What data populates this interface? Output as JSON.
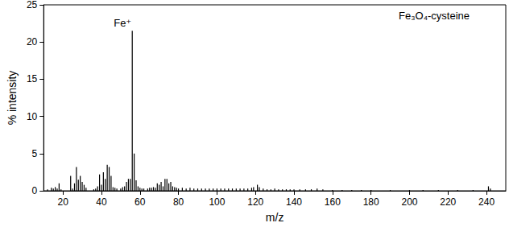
{
  "chart_data": {
    "type": "bar",
    "title": "Fe₃O₄-cysteine",
    "x_label": "m/z",
    "y_label": "% intensity",
    "color": "#000000",
    "xlim": [
      10,
      250
    ],
    "xticks": [
      20,
      40,
      60,
      80,
      100,
      120,
      140,
      160,
      180,
      200,
      220,
      240
    ],
    "ylim": [
      0,
      25
    ],
    "yticks": [
      0,
      5,
      10,
      15,
      20,
      25
    ],
    "grid": false,
    "annotations": [
      {
        "text": "Fe⁺",
        "x": 56
      }
    ],
    "x": [
      12,
      14,
      15,
      16,
      17,
      18,
      19,
      24,
      25,
      26,
      27,
      28,
      29,
      30,
      31,
      32,
      36,
      37,
      38,
      39,
      40,
      41,
      42,
      43,
      44,
      45,
      46,
      47,
      48,
      50,
      51,
      52,
      53,
      54,
      55,
      56,
      57,
      58,
      59,
      60,
      61,
      62,
      64,
      65,
      66,
      67,
      68,
      69,
      70,
      71,
      72,
      73,
      74,
      75,
      76,
      77,
      78,
      79,
      80,
      82,
      84,
      86,
      88,
      90,
      92,
      94,
      96,
      98,
      100,
      102,
      104,
      106,
      108,
      110,
      112,
      114,
      116,
      118,
      119,
      121,
      122,
      124,
      126,
      128,
      130,
      132,
      134,
      136,
      138,
      140,
      143,
      146,
      149,
      152,
      155,
      160,
      165,
      170,
      175,
      180,
      190,
      200,
      207,
      215,
      225,
      233,
      241,
      242
    ],
    "values": [
      0.2,
      0.4,
      0.3,
      0.5,
      0.3,
      1.0,
      0.2,
      2.0,
      0.3,
      1.0,
      3.2,
      1.5,
      2.0,
      1.2,
      0.8,
      0.4,
      0.2,
      0.3,
      0.6,
      2.2,
      0.8,
      2.5,
      1.6,
      3.5,
      3.2,
      2.0,
      0.5,
      0.4,
      0.3,
      0.3,
      0.5,
      0.6,
      1.2,
      1.6,
      1.6,
      21.5,
      5.0,
      1.4,
      0.6,
      0.4,
      0.3,
      0.3,
      0.3,
      0.4,
      0.4,
      0.5,
      0.4,
      1.0,
      0.8,
      1.2,
      0.6,
      1.6,
      1.6,
      1.0,
      1.2,
      0.6,
      0.5,
      0.4,
      0.3,
      0.4,
      0.3,
      0.4,
      0.3,
      0.3,
      0.3,
      0.3,
      0.3,
      0.3,
      0.3,
      0.3,
      0.3,
      0.3,
      0.3,
      0.3,
      0.3,
      0.3,
      0.3,
      0.4,
      0.5,
      0.8,
      0.5,
      0.3,
      0.2,
      0.2,
      0.3,
      0.2,
      0.2,
      0.2,
      0.2,
      0.2,
      0.2,
      0.2,
      0.2,
      0.3,
      0.2,
      0.1,
      0.1,
      0.1,
      0.1,
      0.1,
      0.1,
      0.1,
      0.1,
      0.1,
      0.1,
      0.1,
      0.6,
      0.3
    ]
  }
}
